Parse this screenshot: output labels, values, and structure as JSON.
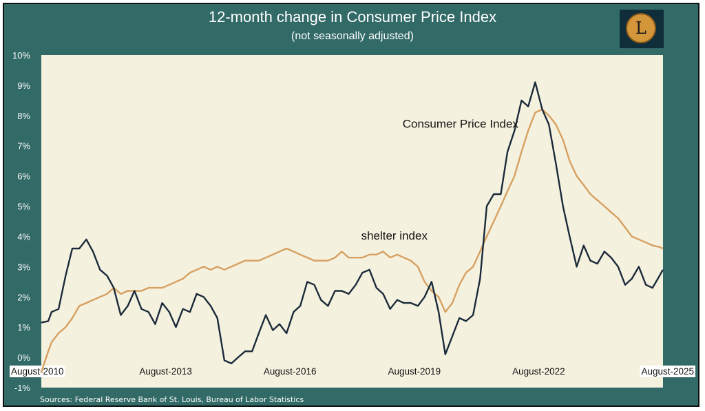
{
  "header": {
    "title": "12-month change in Consumer Price Index",
    "subtitle": "(not seasonally adjusted)"
  },
  "logo": {
    "letter": "L"
  },
  "footer": {
    "source": "Sources: Federal Reserve Bank of St. Louis, Bureau of Labor Statistics"
  },
  "colors": {
    "background": "#326a67",
    "plot_area": "#f5f1df",
    "cpi": "#1b2a3a",
    "shelter": "#d6a060",
    "logo_bg": "#0f2e3a",
    "logo_coin": "#d4963a"
  },
  "chart_data": {
    "type": "line",
    "title": "12-month change in Consumer Price Index",
    "subtitle": "(not seasonally adjusted)",
    "xlabel": "",
    "ylabel": "",
    "ylim": [
      -1,
      10
    ],
    "y_ticks": [
      "-1%",
      "0%",
      "1%",
      "2%",
      "3%",
      "4%",
      "5%",
      "6%",
      "7%",
      "8%",
      "9%",
      "10%"
    ],
    "x_ticks": [
      "August-2010",
      "August-2013",
      "August-2016",
      "August-2019",
      "August-2022",
      "August-2025"
    ],
    "x_tick_positions": [
      2010.583,
      2013.583,
      2016.583,
      2019.583,
      2022.583,
      2025.583
    ],
    "x_range": [
      2010.583,
      2025.583
    ],
    "grid": false,
    "annotations": [
      {
        "text": "Consumer Price Index",
        "x": 2019.3,
        "y": 7.6
      },
      {
        "text": "shelter index",
        "x": 2018.3,
        "y": 3.9
      }
    ],
    "series": [
      {
        "name": "Consumer Price Index",
        "x": [
          2010.58,
          2010.75,
          2010.83,
          2011.0,
          2011.17,
          2011.33,
          2011.5,
          2011.67,
          2011.83,
          2012.0,
          2012.17,
          2012.33,
          2012.5,
          2012.67,
          2012.83,
          2013.0,
          2013.17,
          2013.33,
          2013.5,
          2013.67,
          2013.83,
          2014.0,
          2014.17,
          2014.33,
          2014.5,
          2014.67,
          2014.83,
          2015.0,
          2015.17,
          2015.33,
          2015.5,
          2015.67,
          2015.83,
          2016.0,
          2016.17,
          2016.33,
          2016.5,
          2016.67,
          2016.83,
          2017.0,
          2017.17,
          2017.33,
          2017.5,
          2017.67,
          2017.83,
          2018.0,
          2018.17,
          2018.33,
          2018.5,
          2018.67,
          2018.83,
          2019.0,
          2019.17,
          2019.33,
          2019.5,
          2019.67,
          2019.83,
          2020.0,
          2020.17,
          2020.33,
          2020.5,
          2020.67,
          2020.83,
          2021.0,
          2021.17,
          2021.33,
          2021.5,
          2021.67,
          2021.83,
          2022.0,
          2022.17,
          2022.33,
          2022.5,
          2022.67,
          2022.83,
          2023.0,
          2023.17,
          2023.33,
          2023.5,
          2023.67,
          2023.83,
          2024.0,
          2024.17,
          2024.33,
          2024.5,
          2024.67,
          2024.83,
          2025.0,
          2025.17,
          2025.33,
          2025.5,
          2025.58
        ],
        "values": [
          1.15,
          1.2,
          1.5,
          1.6,
          2.7,
          3.6,
          3.6,
          3.9,
          3.5,
          2.9,
          2.7,
          2.3,
          1.4,
          1.7,
          2.2,
          1.6,
          1.5,
          1.1,
          1.8,
          1.5,
          1.0,
          1.6,
          1.5,
          2.1,
          2.0,
          1.7,
          1.3,
          -0.1,
          -0.2,
          0.0,
          0.2,
          0.2,
          0.8,
          1.4,
          0.9,
          1.1,
          0.8,
          1.5,
          1.7,
          2.5,
          2.4,
          1.9,
          1.7,
          2.2,
          2.2,
          2.1,
          2.4,
          2.8,
          2.9,
          2.3,
          2.1,
          1.6,
          1.9,
          1.8,
          1.8,
          1.7,
          2.0,
          2.5,
          1.5,
          0.1,
          0.7,
          1.3,
          1.2,
          1.4,
          2.6,
          5.0,
          5.4,
          5.4,
          6.8,
          7.5,
          8.5,
          8.3,
          9.1,
          8.2,
          7.7,
          6.4,
          5.0,
          4.0,
          3.0,
          3.7,
          3.2,
          3.1,
          3.5,
          3.3,
          3.0,
          2.4,
          2.6,
          3.0,
          2.4,
          2.3,
          2.7,
          2.9
        ]
      },
      {
        "name": "shelter index",
        "x": [
          2010.58,
          2010.75,
          2010.83,
          2011.0,
          2011.17,
          2011.33,
          2011.5,
          2011.67,
          2011.83,
          2012.0,
          2012.17,
          2012.33,
          2012.5,
          2012.67,
          2012.83,
          2013.0,
          2013.17,
          2013.33,
          2013.5,
          2013.67,
          2013.83,
          2014.0,
          2014.17,
          2014.33,
          2014.5,
          2014.67,
          2014.83,
          2015.0,
          2015.17,
          2015.33,
          2015.5,
          2015.67,
          2015.83,
          2016.0,
          2016.17,
          2016.33,
          2016.5,
          2016.67,
          2016.83,
          2017.0,
          2017.17,
          2017.33,
          2017.5,
          2017.67,
          2017.83,
          2018.0,
          2018.17,
          2018.33,
          2018.5,
          2018.67,
          2018.83,
          2019.0,
          2019.17,
          2019.33,
          2019.5,
          2019.67,
          2019.83,
          2020.0,
          2020.17,
          2020.33,
          2020.5,
          2020.67,
          2020.83,
          2021.0,
          2021.17,
          2021.33,
          2021.5,
          2021.67,
          2021.83,
          2022.0,
          2022.17,
          2022.33,
          2022.5,
          2022.67,
          2022.83,
          2023.0,
          2023.17,
          2023.33,
          2023.5,
          2023.67,
          2023.83,
          2024.0,
          2024.17,
          2024.33,
          2024.5,
          2024.67,
          2024.83,
          2025.0,
          2025.17,
          2025.33,
          2025.5,
          2025.58
        ],
        "values": [
          -0.5,
          0.2,
          0.5,
          0.8,
          1.0,
          1.3,
          1.7,
          1.8,
          1.9,
          2.0,
          2.1,
          2.3,
          2.1,
          2.2,
          2.2,
          2.2,
          2.3,
          2.3,
          2.3,
          2.4,
          2.5,
          2.6,
          2.8,
          2.9,
          3.0,
          2.9,
          3.0,
          2.9,
          3.0,
          3.1,
          3.2,
          3.2,
          3.2,
          3.3,
          3.4,
          3.5,
          3.6,
          3.5,
          3.4,
          3.3,
          3.2,
          3.2,
          3.2,
          3.3,
          3.5,
          3.3,
          3.3,
          3.3,
          3.4,
          3.4,
          3.5,
          3.3,
          3.4,
          3.3,
          3.2,
          3.0,
          2.5,
          2.2,
          2.0,
          1.5,
          1.8,
          2.4,
          2.8,
          3.0,
          3.5,
          4.0,
          4.5,
          5.0,
          5.5,
          6.0,
          6.8,
          7.5,
          8.1,
          8.2,
          8.0,
          7.7,
          7.2,
          6.5,
          6.0,
          5.7,
          5.4,
          5.2,
          5.0,
          4.8,
          4.6,
          4.3,
          4.0,
          3.9,
          3.8,
          3.7,
          3.65,
          3.6
        ]
      }
    ]
  }
}
